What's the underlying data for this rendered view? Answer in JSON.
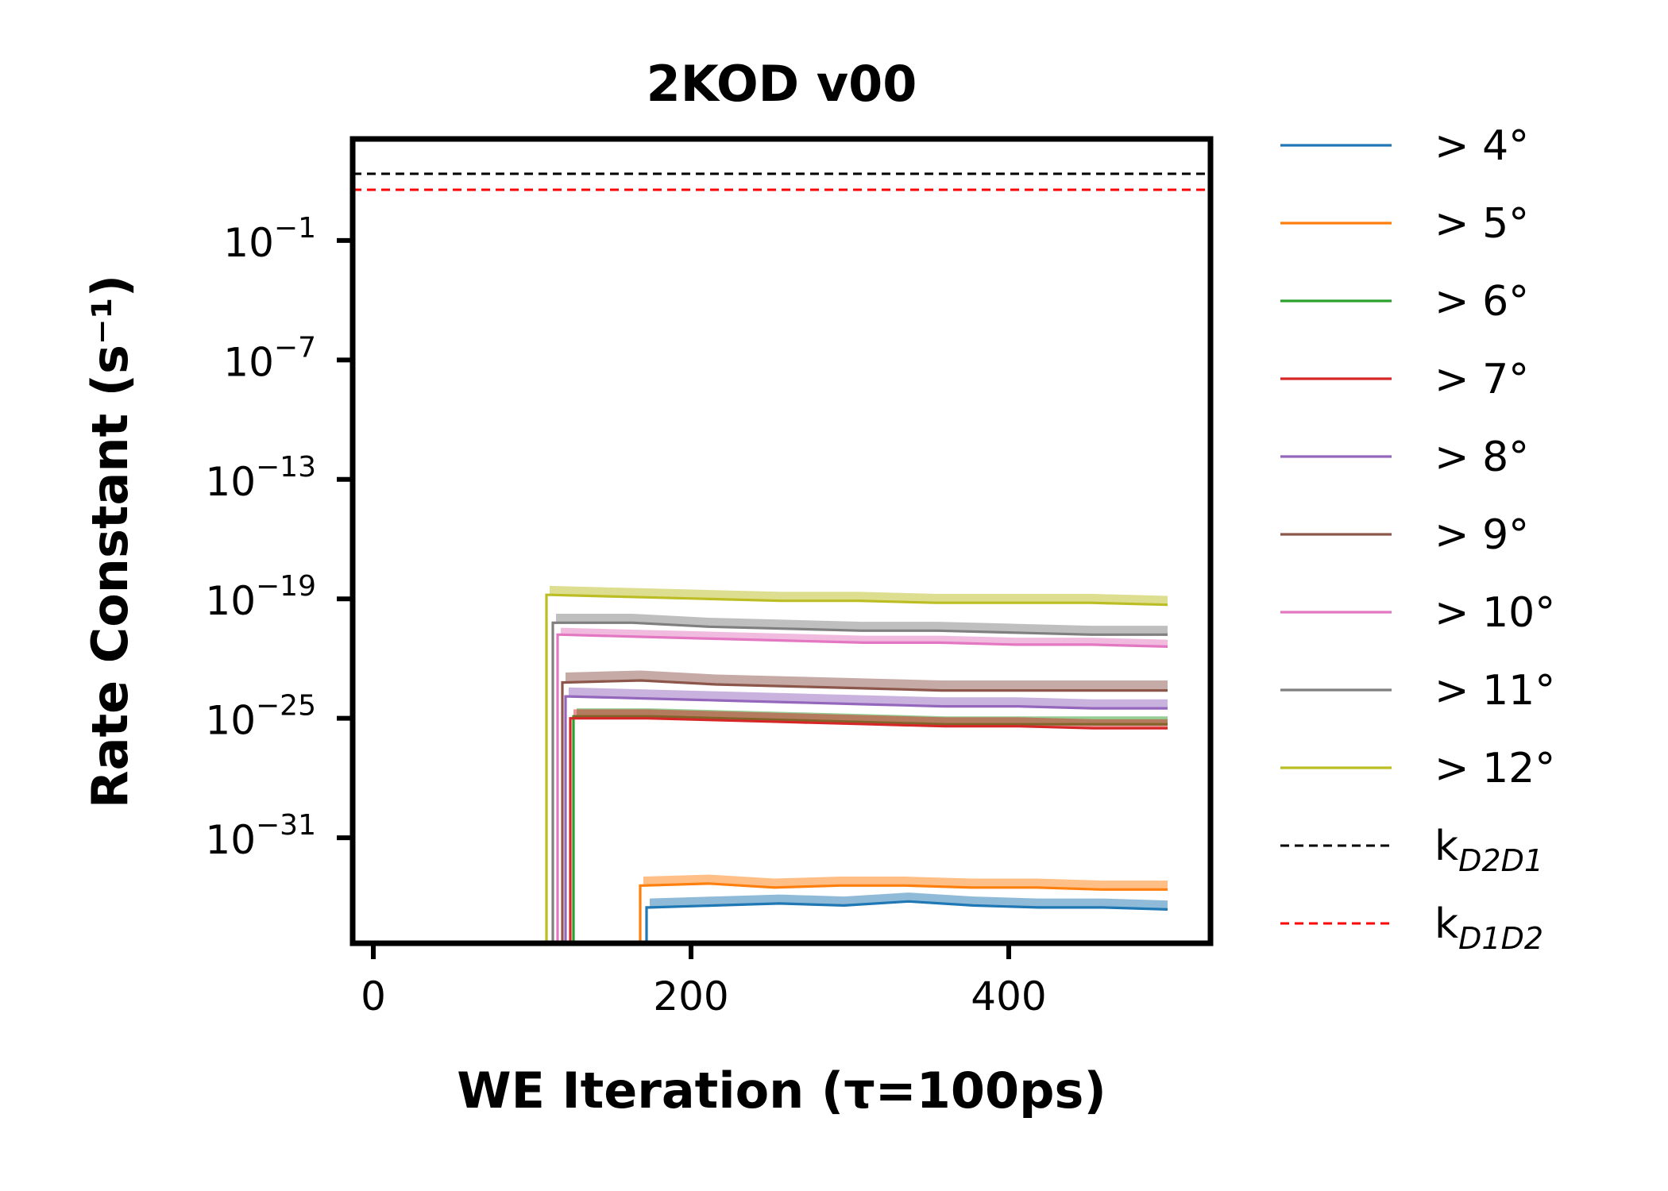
{
  "chart_data": {
    "type": "line",
    "title": "2KOD v00",
    "xlabel": "WE Iteration (τ=100ps)",
    "ylabel": "Rate Constant (s⁻¹)",
    "xlim": [
      -13,
      527
    ],
    "xticks": [
      {
        "value": 0,
        "label": "0"
      },
      {
        "value": 200,
        "label": "200"
      },
      {
        "value": 400,
        "label": "400"
      }
    ],
    "y_scale": "log",
    "ylim_log10": [
      -36.3,
      4.1
    ],
    "yticks": [
      {
        "exp": -1,
        "base": "10",
        "sup": "−1"
      },
      {
        "exp": -7,
        "base": "10",
        "sup": "−7"
      },
      {
        "exp": -13,
        "base": "10",
        "sup": "−13"
      },
      {
        "exp": -19,
        "base": "10",
        "sup": "−19"
      },
      {
        "exp": -25,
        "base": "10",
        "sup": "−25"
      },
      {
        "exp": -31,
        "base": "10",
        "sup": "−31"
      }
    ],
    "legend_position": "outside-right",
    "series": [
      {
        "name": "> 4°",
        "color": "#1f77b4",
        "start": 172,
        "end": 500,
        "y_log10": [
          -34.5,
          -34.4,
          -34.3,
          -34.4,
          -34.2,
          -34.4,
          -34.5,
          -34.5,
          -34.6
        ],
        "band": 0.45
      },
      {
        "name": "> 5°",
        "color": "#ff7f0e",
        "start": 168,
        "end": 500,
        "y_log10": [
          -33.4,
          -33.3,
          -33.5,
          -33.4,
          -33.4,
          -33.5,
          -33.5,
          -33.6,
          -33.6
        ],
        "band": 0.45
      },
      {
        "name": "> 6°",
        "color": "#2ca02c",
        "start": 126,
        "end": 500,
        "y_log10": [
          -24.9,
          -24.9,
          -25.0,
          -25.1,
          -25.2,
          -25.3,
          -25.3,
          -25.3,
          -25.3
        ],
        "band": 0.4
      },
      {
        "name": "> 7°",
        "color": "#d62728",
        "start": 124,
        "end": 500,
        "y_log10": [
          -25.0,
          -25.0,
          -25.1,
          -25.2,
          -25.3,
          -25.4,
          -25.4,
          -25.5,
          -25.5
        ],
        "band": 0.45
      },
      {
        "name": "> 8°",
        "color": "#9467bd",
        "start": 121,
        "end": 500,
        "y_log10": [
          -23.9,
          -24.0,
          -24.1,
          -24.2,
          -24.3,
          -24.4,
          -24.4,
          -24.5,
          -24.5
        ],
        "band": 0.45
      },
      {
        "name": "> 9°",
        "color": "#8c564b",
        "start": 119,
        "end": 500,
        "y_log10": [
          -23.2,
          -23.1,
          -23.3,
          -23.4,
          -23.5,
          -23.6,
          -23.6,
          -23.6,
          -23.6
        ],
        "band": 0.5
      },
      {
        "name": "> 10°",
        "color": "#e377c2",
        "start": 116,
        "end": 500,
        "y_log10": [
          -20.8,
          -20.9,
          -21.0,
          -21.1,
          -21.2,
          -21.2,
          -21.3,
          -21.3,
          -21.4
        ],
        "band": 0.35
      },
      {
        "name": "> 11°",
        "color": "#7f7f7f",
        "start": 113,
        "end": 500,
        "y_log10": [
          -20.2,
          -20.2,
          -20.4,
          -20.5,
          -20.6,
          -20.6,
          -20.7,
          -20.8,
          -20.8
        ],
        "band": 0.45
      },
      {
        "name": "> 12°",
        "color": "#bcbd22",
        "start": 109,
        "end": 500,
        "y_log10": [
          -18.8,
          -18.9,
          -19.0,
          -19.1,
          -19.1,
          -19.2,
          -19.2,
          -19.2,
          -19.3
        ],
        "band": 0.45
      }
    ],
    "reference_lines": [
      {
        "name_base": "k",
        "name_sub": "D2D1",
        "color": "#000000",
        "y_log10": 2.35,
        "style": "dashed"
      },
      {
        "name_base": "k",
        "name_sub": "D1D2",
        "color": "#ff0000",
        "y_log10": 1.55,
        "style": "dashed"
      }
    ]
  }
}
